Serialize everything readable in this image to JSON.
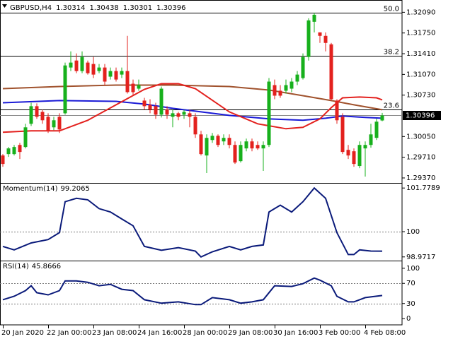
{
  "chart_data": [
    {
      "type": "candlestick",
      "title": "GBPUSD,H4",
      "categories": [
        "20 Jan 2020",
        null,
        null,
        null,
        null,
        null,
        null,
        null,
        "22 Jan 00:00",
        null,
        null,
        null,
        null,
        null,
        null,
        null,
        "23 Jan 08:00",
        null,
        null,
        null,
        null,
        null,
        null,
        null,
        "24 Jan 16:00",
        null,
        null,
        null,
        null,
        null,
        null,
        null,
        "28 Jan 00:00",
        null,
        null,
        null,
        null,
        null,
        null,
        null,
        "29 Jan 08:00",
        null,
        null,
        null,
        null,
        null,
        null,
        null,
        "30 Jan 16:00",
        null,
        null,
        null,
        null,
        null,
        null,
        null,
        "3 Feb 00:00",
        null,
        null,
        null,
        null,
        null,
        null,
        null,
        "4 Feb 08:00",
        null,
        null,
        null
      ],
      "open": [
        1.29739,
        1.29762,
        1.29762,
        1.29912,
        1.29878,
        1.30259,
        1.30548,
        1.30455,
        1.30374,
        1.30201,
        1.30374,
        1.30432,
        1.31183,
        1.31298,
        1.31125,
        1.31264,
        1.31241,
        1.31125,
        1.31183,
        1.31033,
        1.31125,
        1.31067,
        1.31125,
        1.30917,
        1.30836,
        1.3064,
        1.30571,
        1.30548,
        1.30409,
        1.3049,
        1.30374,
        1.30432,
        1.30409,
        1.30432,
        1.30374,
        1.30085,
        1.29739,
        1.29993,
        1.30062,
        1.2997,
        1.30028,
        1.29912,
        1.29646,
        1.29855,
        1.2997,
        1.29912,
        1.29855,
        1.29912,
        1.30894,
        1.30802,
        1.30802,
        1.30836,
        1.30952,
        1.3101,
        1.31356,
        1.31934,
        1.3176,
        1.31703,
        1.31564,
        1.3064,
        1.30374,
        1.29831,
        1.29808,
        1.29566,
        1.29855,
        1.29912,
        1.30028,
        1.30314
      ],
      "high": [
        1.29762,
        1.29878,
        1.29912,
        1.29947,
        1.30259,
        1.30605,
        1.30594,
        1.3049,
        1.30432,
        1.30374,
        1.30432,
        1.31264,
        1.31448,
        1.31414,
        1.31448,
        1.31298,
        1.31356,
        1.31241,
        1.31241,
        1.31183,
        1.31183,
        1.31183,
        1.31703,
        1.30986,
        1.30986,
        1.30686,
        1.30663,
        1.30605,
        1.30871,
        1.30548,
        1.3049,
        1.30455,
        1.3049,
        1.3049,
        1.30432,
        1.30143,
        1.30085,
        1.30109,
        1.30085,
        1.30085,
        1.30085,
        1.2997,
        1.2997,
        1.30016,
        1.30016,
        1.2997,
        1.2997,
        1.3101,
        1.30986,
        1.30894,
        1.30986,
        1.3101,
        1.31125,
        1.31414,
        1.31991,
        1.32084,
        1.3176,
        1.3176,
        1.31587,
        1.30663,
        1.30432,
        1.29912,
        1.29855,
        1.2997,
        1.2997,
        1.30259,
        1.3034,
        1.30438
      ],
      "low": [
        1.29554,
        1.29716,
        1.29739,
        1.29681,
        1.29855,
        1.30224,
        1.3034,
        1.30259,
        1.30109,
        1.30155,
        1.30109,
        1.30409,
        1.31125,
        1.3109,
        1.3109,
        1.31067,
        1.3101,
        1.3109,
        1.30894,
        1.30986,
        1.30952,
        1.3101,
        1.30755,
        1.30721,
        1.30802,
        1.3049,
        1.30432,
        1.3034,
        1.30363,
        1.3034,
        1.30201,
        1.30317,
        1.3034,
        1.30201,
        1.30028,
        1.29739,
        1.29451,
        1.29947,
        1.29878,
        1.29912,
        1.29855,
        1.296,
        1.29623,
        1.29808,
        1.29808,
        1.29831,
        1.29485,
        1.29878,
        1.30663,
        1.30686,
        1.30755,
        1.30779,
        1.30894,
        1.30986,
        1.31298,
        1.3176,
        1.31587,
        1.31448,
        1.3064,
        1.30259,
        1.29762,
        1.29681,
        1.29554,
        1.29531,
        1.29393,
        1.29866,
        1.29993,
        1.30301
      ],
      "close": [
        1.296,
        1.29855,
        1.29878,
        1.29797,
        1.30201,
        1.30548,
        1.30374,
        1.30317,
        1.30143,
        1.30317,
        1.30166,
        1.31217,
        1.31264,
        1.31125,
        1.31356,
        1.3109,
        1.31067,
        1.31183,
        1.30952,
        1.31125,
        1.30986,
        1.31125,
        1.30779,
        1.30779,
        1.30894,
        1.30548,
        1.3049,
        1.30409,
        1.30836,
        1.30409,
        1.30432,
        1.30374,
        1.30455,
        1.30374,
        1.30085,
        1.29762,
        1.30028,
        1.30062,
        1.29912,
        1.30028,
        1.29912,
        1.29623,
        1.29912,
        1.2997,
        1.29855,
        1.29855,
        1.29912,
        1.30952,
        1.30721,
        1.30721,
        1.30894,
        1.30952,
        1.31067,
        1.31356,
        1.31957,
        1.32049,
        1.31703,
        1.31587,
        1.30663,
        1.30317,
        1.29797,
        1.29739,
        1.296,
        1.29912,
        1.29912,
        1.30085,
        1.30294,
        1.30396
      ],
      "up_color": "#17b01c",
      "down_color": "#e3211e",
      "overlays": [
        {
          "color": "#a0522d",
          "x": [
            0,
            10,
            20,
            30,
            40,
            47,
            53,
            58,
            62,
            67
          ],
          "values": [
            1.30836,
            1.30871,
            1.30894,
            1.30894,
            1.30871,
            1.30813,
            1.30721,
            1.3064,
            1.30571,
            1.3049
          ]
        },
        {
          "color": "#1a1ad6",
          "x": [
            0,
            10,
            20,
            25,
            30,
            35,
            40,
            47,
            53,
            57,
            60,
            64,
            67
          ],
          "values": [
            1.30605,
            1.3064,
            1.30628,
            1.30582,
            1.30513,
            1.30455,
            1.30397,
            1.3034,
            1.30317,
            1.30351,
            1.30386,
            1.30363,
            1.30351
          ]
        },
        {
          "color": "#e3211e",
          "x": [
            0,
            5,
            10,
            15,
            20,
            25,
            28,
            31,
            34,
            40,
            45,
            50,
            53,
            56,
            58,
            60,
            63,
            66,
            67
          ],
          "values": [
            1.3012,
            1.30143,
            1.30143,
            1.30317,
            1.30571,
            1.30825,
            1.30917,
            1.30917,
            1.30836,
            1.30455,
            1.30259,
            1.30178,
            1.30201,
            1.3034,
            1.30524,
            1.30686,
            1.30698,
            1.30686,
            1.30652
          ]
        }
      ],
      "levels": [
        {
          "value": 1.32084,
          "label": "50.0"
        },
        {
          "value": 1.31376,
          "label": "38.2"
        },
        {
          "value": 1.305,
          "label": "23.6"
        }
      ],
      "ylim": [
        1.293,
        1.3228
      ],
      "yticks": [
        {
          "value": 1.3209,
          "label": "1.32090"
        },
        {
          "value": 1.3175,
          "label": "1.31750"
        },
        {
          "value": 1.3141,
          "label": "1.31410"
        },
        {
          "value": 1.3107,
          "label": "1.31070"
        },
        {
          "value": 1.3073,
          "label": "1.30730"
        },
        {
          "value": 1.3005,
          "label": "1.30050"
        },
        {
          "value": 1.2971,
          "label": "1.29710"
        },
        {
          "value": 1.2937,
          "label": "1.29370"
        }
      ]
    },
    {
      "type": "line",
      "title": "Momentum(14)",
      "series": [
        {
          "color": "#0a1a7a",
          "x": [
            0,
            2,
            5,
            8,
            10,
            11,
            13,
            15,
            17,
            19,
            21,
            23,
            25,
            28,
            31,
            34,
            35,
            37,
            40,
            42,
            44,
            46,
            47,
            49,
            51,
            53,
            55,
            57,
            59,
            61,
            62,
            63,
            65,
            67
          ],
          "values": [
            99.4,
            99.26,
            99.54,
            99.68,
            99.96,
            101.22,
            101.36,
            101.3,
            100.94,
            100.8,
            100.52,
            100.24,
            99.4,
            99.24,
            99.35,
            99.21,
            98.9717,
            99.18,
            99.4,
            99.26,
            99.4,
            99.46,
            100.8,
            101.08,
            100.8,
            101.22,
            101.7789,
            101.36,
            99.96,
            99.07,
            99.07,
            99.26,
            99.21,
            99.2065
          ]
        }
      ],
      "levels": [
        100
      ],
      "ylim": [
        98.85,
        101.9
      ],
      "yticks": [
        101.7789,
        100,
        98.9717
      ]
    },
    {
      "type": "line",
      "title": "RSI(14)",
      "series": [
        {
          "color": "#0a1a7a",
          "x": [
            0,
            2,
            4,
            5,
            6,
            8,
            10,
            11,
            13,
            15,
            17,
            19,
            21,
            23,
            25,
            28,
            31,
            34,
            35,
            37,
            40,
            42,
            44,
            46,
            48,
            51,
            53,
            55,
            56,
            58,
            59,
            61,
            62,
            64,
            67
          ],
          "values": [
            37.5,
            44.4,
            55.6,
            65.3,
            51.4,
            47.2,
            55.6,
            75,
            75,
            72.2,
            65.3,
            68.1,
            58.3,
            55.6,
            37.5,
            30.6,
            33.3,
            27.8,
            27.8,
            41.7,
            37.5,
            30.6,
            33.3,
            37.5,
            65.3,
            63.9,
            69.4,
            80.6,
            76.4,
            65.3,
            44.4,
            33.3,
            33.3,
            41.7,
            45.8666
          ]
        }
      ],
      "levels": [
        70,
        30
      ],
      "ylim": [
        -11,
        111
      ],
      "yticks": [
        100,
        70,
        30,
        0
      ]
    }
  ]
}
